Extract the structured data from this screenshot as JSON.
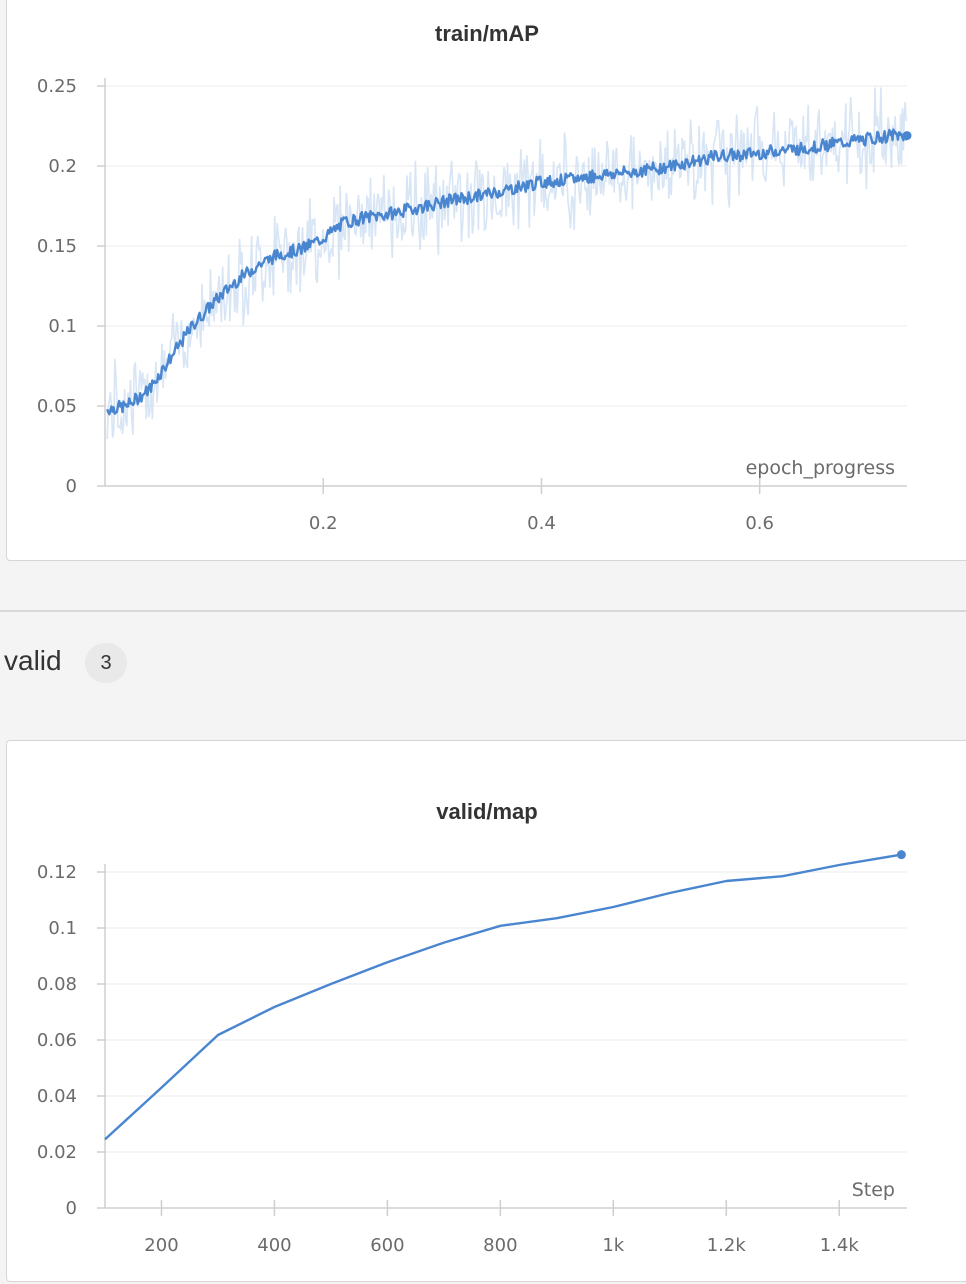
{
  "section": {
    "label": "valid",
    "count": "3"
  },
  "colors": {
    "line": "#4a86d0",
    "band": "#c9dcf2",
    "grid": "#ebebeb",
    "axis": "#cfcfcf"
  },
  "chart_data": [
    {
      "type": "line",
      "title": "train/mAP",
      "xlabel": "epoch_progress",
      "ylabel": "",
      "xlim": [
        0.0,
        0.735
      ],
      "ylim": [
        0,
        0.25
      ],
      "xticks": [
        "0.2",
        "0.4",
        "0.6"
      ],
      "xtick_values": [
        0.2,
        0.4,
        0.6
      ],
      "yticks": [
        "0",
        "0.05",
        "0.1",
        "0.15",
        "0.2",
        "0.25"
      ],
      "ytick_values": [
        0,
        0.05,
        0.1,
        0.15,
        0.2,
        0.25
      ],
      "grid": true,
      "series": [
        {
          "x": [
            0.002,
            0.02,
            0.04,
            0.06,
            0.08,
            0.1,
            0.12,
            0.14,
            0.16,
            0.18,
            0.2,
            0.22,
            0.24,
            0.26,
            0.28,
            0.3,
            0.32,
            0.34,
            0.36,
            0.38,
            0.4,
            0.42,
            0.44,
            0.46,
            0.48,
            0.5,
            0.52,
            0.54,
            0.56,
            0.58,
            0.6,
            0.62,
            0.64,
            0.66,
            0.68,
            0.7,
            0.72,
            0.735
          ],
          "y": [
            0.048,
            0.05,
            0.06,
            0.08,
            0.1,
            0.115,
            0.128,
            0.138,
            0.145,
            0.148,
            0.155,
            0.165,
            0.168,
            0.17,
            0.173,
            0.176,
            0.179,
            0.181,
            0.184,
            0.187,
            0.19,
            0.191,
            0.193,
            0.195,
            0.196,
            0.198,
            0.2,
            0.203,
            0.206,
            0.207,
            0.208,
            0.21,
            0.211,
            0.213,
            0.215,
            0.217,
            0.219,
            0.219
          ]
        }
      ]
    },
    {
      "type": "line",
      "title": "valid/map",
      "xlabel": "Step",
      "ylabel": "",
      "xlim": [
        100,
        1520
      ],
      "ylim": [
        0,
        0.12
      ],
      "xticks": [
        "200",
        "400",
        "600",
        "800",
        "1k",
        "1.2k",
        "1.4k"
      ],
      "xtick_values": [
        200,
        400,
        600,
        800,
        1000,
        1200,
        1400
      ],
      "yticks": [
        "0",
        "0.02",
        "0.04",
        "0.06",
        "0.08",
        "0.1",
        "0.12"
      ],
      "ytick_values": [
        0,
        0.02,
        0.04,
        0.06,
        0.08,
        0.1,
        0.12
      ],
      "grid": true,
      "series": [
        {
          "x": [
            100,
            200,
            300,
            400,
            500,
            600,
            700,
            800,
            900,
            1000,
            1100,
            1200,
            1300,
            1400,
            1510
          ],
          "y": [
            0.0245,
            0.043,
            0.0618,
            0.0718,
            0.08,
            0.0878,
            0.0948,
            0.1008,
            0.1035,
            0.1075,
            0.1125,
            0.1168,
            0.1185,
            0.1225,
            0.1262
          ]
        }
      ]
    }
  ]
}
